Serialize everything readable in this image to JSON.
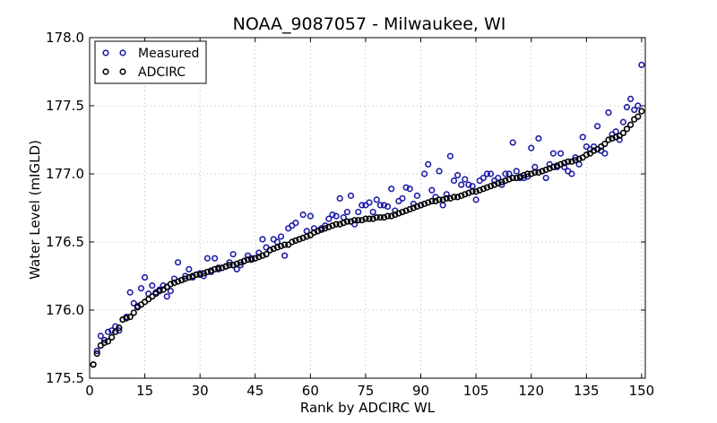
{
  "chart_data": {
    "type": "scatter",
    "title": "NOAA_9087057 - Milwaukee, WI",
    "xlabel": "Rank by ADCIRC WL",
    "ylabel": "Water Level (mIGLD)",
    "xlim": [
      0,
      151
    ],
    "ylim": [
      175.5,
      178.0
    ],
    "xticks": [
      0,
      15,
      30,
      45,
      60,
      75,
      90,
      105,
      120,
      135,
      150
    ],
    "yticks": [
      175.5,
      176.0,
      176.5,
      177.0,
      177.5,
      178.0
    ],
    "ytick_labels": [
      "175.5",
      "176.0",
      "176.5",
      "177.0",
      "177.5",
      "178.0"
    ],
    "grid": true,
    "legend_position": "top-left",
    "series": [
      {
        "name": "Measured",
        "color": "#1c1ca8",
        "x": [
          1,
          2,
          3,
          4,
          5,
          6,
          7,
          8,
          9,
          10,
          11,
          12,
          13,
          14,
          15,
          16,
          17,
          18,
          19,
          20,
          21,
          22,
          23,
          24,
          25,
          26,
          27,
          28,
          29,
          30,
          31,
          32,
          33,
          34,
          35,
          36,
          37,
          38,
          39,
          40,
          41,
          42,
          43,
          44,
          45,
          46,
          47,
          48,
          49,
          50,
          51,
          52,
          53,
          54,
          55,
          56,
          57,
          58,
          59,
          60,
          61,
          62,
          63,
          64,
          65,
          66,
          67,
          68,
          69,
          70,
          71,
          72,
          73,
          74,
          75,
          76,
          77,
          78,
          79,
          80,
          81,
          82,
          83,
          84,
          85,
          86,
          87,
          88,
          89,
          90,
          91,
          92,
          93,
          94,
          95,
          96,
          97,
          98,
          99,
          100,
          101,
          102,
          103,
          104,
          105,
          106,
          107,
          108,
          109,
          110,
          111,
          112,
          113,
          114,
          115,
          116,
          117,
          118,
          119,
          120,
          121,
          122,
          123,
          124,
          125,
          126,
          127,
          128,
          129,
          130,
          131,
          132,
          133,
          134,
          135,
          136,
          137,
          138,
          139,
          140,
          141,
          142,
          143,
          144,
          145,
          146,
          147,
          148,
          149,
          150
        ],
        "y": [
          175.6,
          175.7,
          175.81,
          175.78,
          175.84,
          175.85,
          175.88,
          175.85,
          175.93,
          175.95,
          176.13,
          176.05,
          176.03,
          176.16,
          176.24,
          176.12,
          176.18,
          176.13,
          176.15,
          176.18,
          176.1,
          176.14,
          176.23,
          176.35,
          176.22,
          176.25,
          176.3,
          176.24,
          176.26,
          176.27,
          176.25,
          176.38,
          176.28,
          176.38,
          176.3,
          176.31,
          176.32,
          176.35,
          176.41,
          176.3,
          176.33,
          176.36,
          176.4,
          176.38,
          176.38,
          176.42,
          176.52,
          176.46,
          176.44,
          176.52,
          176.5,
          176.54,
          176.4,
          176.6,
          176.62,
          176.64,
          176.52,
          176.7,
          176.58,
          176.69,
          176.6,
          176.58,
          176.6,
          176.62,
          176.67,
          176.7,
          176.69,
          176.82,
          176.68,
          176.72,
          176.84,
          176.63,
          176.72,
          176.77,
          176.77,
          176.79,
          176.72,
          176.81,
          176.77,
          176.77,
          176.76,
          176.89,
          176.73,
          176.8,
          176.82,
          176.9,
          176.89,
          176.78,
          176.84,
          176.77,
          177.0,
          177.07,
          176.88,
          176.83,
          177.02,
          176.77,
          176.85,
          177.13,
          176.95,
          176.99,
          176.92,
          176.96,
          176.92,
          176.91,
          176.81,
          176.95,
          176.97,
          177.0,
          177.0,
          176.95,
          176.97,
          176.92,
          177.0,
          177.0,
          177.23,
          177.02,
          176.97,
          176.97,
          176.98,
          177.19,
          177.05,
          177.26,
          177.02,
          176.97,
          177.07,
          177.15,
          177.05,
          177.15,
          177.05,
          177.02,
          177.0,
          177.12,
          177.07,
          177.27,
          177.2,
          177.18,
          177.2,
          177.35,
          177.17,
          177.15,
          177.45,
          177.29,
          177.31,
          177.25,
          177.38,
          177.49,
          177.55,
          177.47,
          177.5,
          177.8
        ]
      },
      {
        "name": "ADCIRC",
        "color": "#000000",
        "x": [
          1,
          2,
          3,
          4,
          5,
          6,
          7,
          8,
          9,
          10,
          11,
          12,
          13,
          14,
          15,
          16,
          17,
          18,
          19,
          20,
          21,
          22,
          23,
          24,
          25,
          26,
          27,
          28,
          29,
          30,
          31,
          32,
          33,
          34,
          35,
          36,
          37,
          38,
          39,
          40,
          41,
          42,
          43,
          44,
          45,
          46,
          47,
          48,
          49,
          50,
          51,
          52,
          53,
          54,
          55,
          56,
          57,
          58,
          59,
          60,
          61,
          62,
          63,
          64,
          65,
          66,
          67,
          68,
          69,
          70,
          71,
          72,
          73,
          74,
          75,
          76,
          77,
          78,
          79,
          80,
          81,
          82,
          83,
          84,
          85,
          86,
          87,
          88,
          89,
          90,
          91,
          92,
          93,
          94,
          95,
          96,
          97,
          98,
          99,
          100,
          101,
          102,
          103,
          104,
          105,
          106,
          107,
          108,
          109,
          110,
          111,
          112,
          113,
          114,
          115,
          116,
          117,
          118,
          119,
          120,
          121,
          122,
          123,
          124,
          125,
          126,
          127,
          128,
          129,
          130,
          131,
          132,
          133,
          134,
          135,
          136,
          137,
          138,
          139,
          140,
          141,
          142,
          143,
          144,
          145,
          146,
          147,
          148,
          149,
          150
        ],
        "y": [
          175.6,
          175.68,
          175.74,
          175.76,
          175.77,
          175.8,
          175.84,
          175.87,
          175.93,
          175.94,
          175.95,
          175.98,
          176.02,
          176.04,
          176.06,
          176.08,
          176.1,
          176.12,
          176.14,
          176.15,
          176.17,
          176.19,
          176.2,
          176.21,
          176.22,
          176.23,
          176.24,
          176.25,
          176.26,
          176.26,
          176.27,
          176.28,
          176.29,
          176.3,
          176.31,
          176.31,
          176.32,
          176.33,
          176.33,
          176.34,
          176.35,
          176.36,
          176.37,
          176.37,
          176.38,
          176.39,
          176.4,
          176.41,
          176.44,
          176.45,
          176.46,
          176.47,
          176.48,
          176.48,
          176.5,
          176.51,
          176.52,
          176.53,
          176.54,
          176.55,
          176.57,
          176.58,
          176.59,
          176.6,
          176.61,
          176.62,
          176.63,
          176.63,
          176.64,
          176.65,
          176.65,
          176.66,
          176.66,
          176.66,
          176.67,
          176.67,
          176.67,
          176.68,
          176.68,
          176.68,
          176.69,
          176.69,
          176.7,
          176.71,
          176.72,
          176.73,
          176.74,
          176.75,
          176.76,
          176.77,
          176.78,
          176.79,
          176.8,
          176.8,
          176.81,
          176.81,
          176.82,
          176.82,
          176.83,
          176.83,
          176.84,
          176.85,
          176.86,
          176.87,
          176.87,
          176.88,
          176.89,
          176.9,
          176.91,
          176.92,
          176.93,
          176.94,
          176.95,
          176.96,
          176.97,
          176.97,
          176.98,
          176.99,
          177.0,
          177.0,
          177.01,
          177.01,
          177.02,
          177.03,
          177.04,
          177.05,
          177.06,
          177.07,
          177.08,
          177.09,
          177.09,
          177.1,
          177.11,
          177.12,
          177.14,
          177.15,
          177.17,
          177.18,
          177.2,
          177.22,
          177.25,
          177.26,
          177.27,
          177.28,
          177.3,
          177.33,
          177.36,
          177.4,
          177.42,
          177.46
        ]
      }
    ]
  }
}
